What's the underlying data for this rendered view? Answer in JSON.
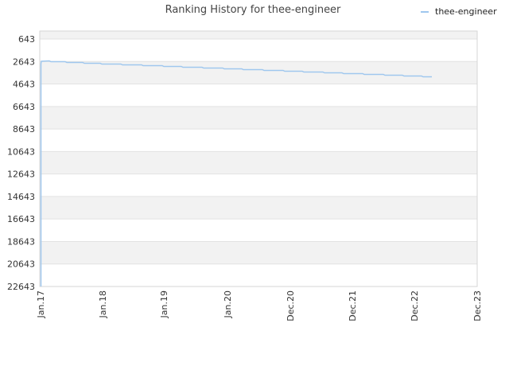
{
  "chart_data": {
    "type": "line",
    "title": "Ranking History for thee-engineer",
    "xlabel": "",
    "ylabel": "",
    "y_reversed": true,
    "ylim": [
      643,
      22643
    ],
    "y_ticks": [
      "643",
      "2643",
      "4643",
      "6643",
      "8643",
      "10643",
      "12643",
      "14643",
      "16643",
      "18643",
      "20643",
      "22643"
    ],
    "x_ticks": [
      "Jan.17",
      "Jan.18",
      "Jan.19",
      "Jan.20",
      "Dec.20",
      "Dec.21",
      "Dec.22",
      "Dec.23"
    ],
    "grid": true,
    "legend_position": "top-right",
    "colors": {
      "series": "#9fc7ee",
      "band": "#f2f2f2",
      "grid": "#e2e2e2",
      "border": "#d6d6d6"
    },
    "series": [
      {
        "name": "thee-engineer",
        "points": [
          [
            "Jan.17",
            22643
          ],
          [
            "Jan.17",
            2650
          ],
          [
            "Jan.17",
            2640
          ],
          [
            "Jan.17",
            2720
          ],
          [
            "Jan.17",
            2800
          ],
          [
            "Jan.17",
            2900
          ],
          [
            "Jan.17",
            2950
          ],
          [
            "Jan.18",
            3180
          ],
          [
            "Jan.18",
            3300
          ],
          [
            "Jan.19",
            3480
          ],
          [
            "Jan.19",
            3580
          ],
          [
            "Jan.20",
            3780
          ],
          [
            "Jan.20",
            3900
          ],
          [
            "Dec.20",
            4060
          ],
          [
            "Dec.20",
            4180
          ],
          [
            "Dec.21",
            4360
          ],
          [
            "Dec.21",
            4480
          ],
          [
            "Dec.22",
            4650
          ],
          [
            "Dec.22",
            4780
          ]
        ]
      }
    ]
  }
}
